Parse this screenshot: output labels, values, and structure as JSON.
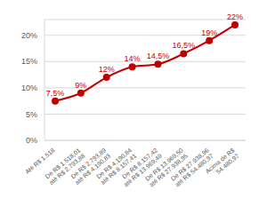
{
  "chart_data": {
    "type": "line",
    "categories": [
      "Até R$ 1.518",
      "De R$ 1.518,01 até R$ 2.793,88",
      "De R$ 2.793,89 até R$ 4.190,83",
      "De R$ 4.190,84 até R$ 8.157,41",
      "De R$ 8.157,42 até R$ 13.969,49",
      "De R$ 13.969,50 até R$ 27.938,95",
      "De R$ 27.938,96 até R$ 54.480,97",
      "Acima de R$ 54.480,97"
    ],
    "values": [
      7.5,
      9,
      12,
      14,
      14.5,
      16.5,
      19,
      22
    ],
    "value_labels": [
      "7,5%",
      "9%",
      "12%",
      "14%",
      "14,5%",
      "16,5%",
      "19%",
      "22%"
    ],
    "color": "#c00000",
    "marker": "circle",
    "ylim": [
      0,
      23
    ],
    "yticks": [
      {
        "value": 0,
        "label": "0%"
      },
      {
        "value": 5,
        "label": "5%"
      },
      {
        "value": 10,
        "label": "10%"
      },
      {
        "value": 15,
        "label": "15%"
      },
      {
        "value": 20,
        "label": "20%"
      }
    ],
    "grid": true,
    "data_labels": true
  }
}
